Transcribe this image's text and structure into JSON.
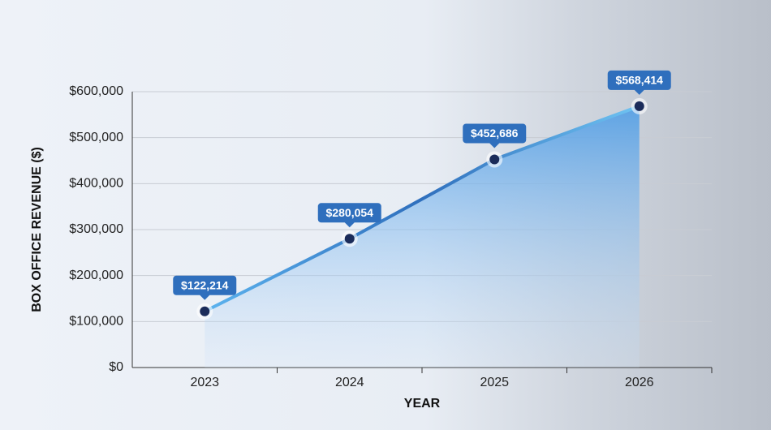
{
  "chart_data": {
    "type": "line",
    "categories": [
      "2023",
      "2024",
      "2025",
      "2026"
    ],
    "series": [
      {
        "color": "#2f6fbd",
        "values": [
          122214,
          280054,
          452686,
          568414
        ],
        "value_labels": [
          "$122,214",
          "$280,054",
          "$452,686",
          "$568,414"
        ]
      }
    ],
    "x_label": "YEAR",
    "y_label": "BOX OFFICE REVENUE ($)",
    "ylim": [
      0,
      600000
    ],
    "yticks": [
      {
        "value": 0,
        "label": "$0"
      },
      {
        "value": 100000,
        "label": "$100,000"
      },
      {
        "value": 200000,
        "label": "$200,000"
      },
      {
        "value": 300000,
        "label": "$300,000"
      },
      {
        "value": 400000,
        "label": "$400,000"
      },
      {
        "value": 500000,
        "label": "$500,000"
      },
      {
        "value": 600000,
        "label": "$600,000"
      }
    ],
    "grid": true
  }
}
